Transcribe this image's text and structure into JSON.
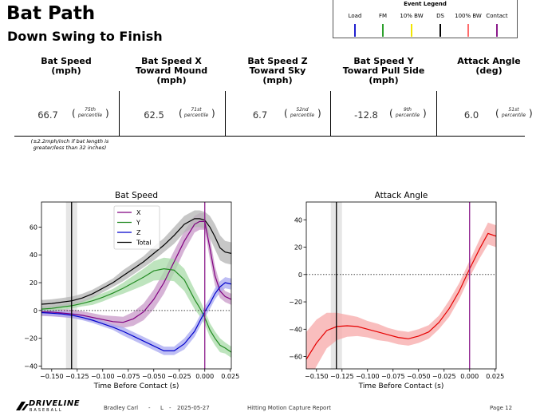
{
  "header": {
    "title": "Bat Path",
    "subtitle": "Down Swing to Finish"
  },
  "event_legend": {
    "title": "Event Legend",
    "items": [
      {
        "label": "Load",
        "color": "#1f1fcf"
      },
      {
        "label": "FM",
        "color": "#2ca02c"
      },
      {
        "label": "10% BW",
        "color": "#f2e600"
      },
      {
        "label": "DS",
        "color": "#000000"
      },
      {
        "label": "100% BW",
        "color": "#ff6b6b"
      },
      {
        "label": "Contact",
        "color": "#8b1a8b"
      }
    ]
  },
  "metrics": [
    {
      "line1": "Bat Speed",
      "line2": "(mph)",
      "line3": "",
      "value": "66.7",
      "pct1": "75th",
      "pct2": "percentile"
    },
    {
      "line1": "Bat Speed X",
      "line2": "Toward Mound",
      "line3": "(mph)",
      "value": "62.5",
      "pct1": "71st",
      "pct2": "percentile"
    },
    {
      "line1": "Bat Speed Z",
      "line2": "Toward Sky",
      "line3": "(mph)",
      "value": "6.7",
      "pct1": "52nd",
      "pct2": "percentile"
    },
    {
      "line1": "Bat Speed Y",
      "line2": "Toward Pull Side",
      "line3": "(mph)",
      "value": "-12.8",
      "pct1": "9th",
      "pct2": "percentile"
    },
    {
      "line1": "Attack Angle",
      "line2": "(deg)",
      "line3": "",
      "value": "6.0",
      "pct1": "51st",
      "pct2": "percentile"
    }
  ],
  "note": "(±2.2mph/inch if bat length is greater/less than 32 inches)",
  "chart_data": [
    {
      "type": "line",
      "title": "Bat Speed",
      "xlabel": "Time Before Contact (s)",
      "ylabel": "",
      "xlim": [
        -0.16,
        0.026
      ],
      "ylim": [
        -42,
        78
      ],
      "xticks": [
        -0.15,
        -0.125,
        -0.1,
        -0.075,
        -0.05,
        -0.025,
        0.0,
        0.025
      ],
      "xtick_labels": [
        "−0.150",
        "−0.125",
        "−0.100",
        "−0.075",
        "−0.050",
        "−0.025",
        "0.000",
        "0.025"
      ],
      "yticks": [
        -40,
        -20,
        0,
        20,
        40,
        60
      ],
      "ytick_labels": [
        "−40",
        "−20",
        "0",
        "20",
        "40",
        "60"
      ],
      "ds_time": -0.1305,
      "ds_band": [
        -0.136,
        -0.125
      ],
      "contact_time": 0.0,
      "zero_line": 0,
      "legend": [
        "X",
        "Y",
        "Z",
        "Total"
      ],
      "legend_position": "upper center",
      "x": [
        -0.16,
        -0.15,
        -0.14,
        -0.13,
        -0.12,
        -0.11,
        -0.1,
        -0.09,
        -0.08,
        -0.07,
        -0.06,
        -0.05,
        -0.04,
        -0.03,
        -0.02,
        -0.01,
        -0.005,
        0.0,
        0.005,
        0.01,
        0.015,
        0.02,
        0.026
      ],
      "series": [
        {
          "name": "X",
          "color": "#800080",
          "band_color": "#c89ac8",
          "values": [
            -1,
            -1.2,
            -1.8,
            -2.5,
            -3.5,
            -5,
            -6.5,
            -8,
            -8.5,
            -6,
            -1,
            8,
            20,
            35,
            50,
            62,
            64,
            64,
            45,
            25,
            14,
            10,
            8
          ],
          "band": [
            3,
            3,
            3,
            3,
            3,
            3,
            3,
            4,
            4,
            5,
            6,
            7,
            8,
            8,
            7,
            6,
            6,
            6,
            8,
            7,
            5,
            4,
            4
          ]
        },
        {
          "name": "Y",
          "color": "#228B22",
          "band_color": "#a8dba8",
          "values": [
            1,
            1.5,
            2.5,
            3.5,
            5,
            7,
            9.5,
            12.5,
            16,
            20,
            24,
            28.5,
            30,
            29,
            22,
            8,
            2,
            -5,
            -14,
            -20,
            -25,
            -27,
            -30
          ],
          "band": [
            2,
            2,
            2,
            2,
            2,
            3,
            3,
            3,
            4,
            5,
            6,
            7,
            8,
            8,
            8,
            7,
            6,
            5,
            5,
            5,
            5,
            4,
            4
          ]
        },
        {
          "name": "Z",
          "color": "#0000cc",
          "band_color": "#a8a8f0",
          "values": [
            -1.5,
            -2,
            -2.5,
            -3.5,
            -5,
            -7,
            -9.5,
            -12,
            -15,
            -18.5,
            -22,
            -25.5,
            -29,
            -29,
            -24,
            -15,
            -8,
            -1,
            5,
            12,
            17,
            20,
            19
          ],
          "band": [
            2,
            2,
            2,
            2,
            2,
            2,
            2,
            2,
            3,
            3,
            3,
            3,
            3,
            3,
            4,
            4,
            4,
            4,
            4,
            4,
            4,
            4,
            4
          ]
        },
        {
          "name": "Total",
          "color": "#000000",
          "band_color": "#b4b4b4",
          "values": [
            4.5,
            5,
            6,
            7,
            9,
            12,
            16,
            20,
            25,
            30,
            35,
            41,
            47,
            54,
            62,
            66,
            66,
            65,
            60,
            53,
            45,
            42,
            41
          ],
          "band": [
            3,
            3,
            3,
            3,
            3,
            3,
            3,
            3,
            4,
            4,
            4,
            5,
            5,
            6,
            6,
            6,
            6,
            6,
            8,
            9,
            9,
            8,
            8
          ]
        }
      ]
    },
    {
      "type": "line",
      "title": "Attack Angle",
      "xlabel": "Time Before Contact (s)",
      "ylabel": "",
      "xlim": [
        -0.16,
        0.026
      ],
      "ylim": [
        -69,
        53
      ],
      "xticks": [
        -0.15,
        -0.125,
        -0.1,
        -0.075,
        -0.05,
        -0.025,
        0.0,
        0.025
      ],
      "xtick_labels": [
        "−0.150",
        "−0.125",
        "−0.100",
        "−0.075",
        "−0.050",
        "−0.025",
        "0.000",
        "0.025"
      ],
      "yticks": [
        -60,
        -40,
        -20,
        0,
        20,
        40
      ],
      "ytick_labels": [
        "−60",
        "−40",
        "−20",
        "0",
        "20",
        "40"
      ],
      "ds_time": -0.1305,
      "ds_band": [
        -0.136,
        -0.125
      ],
      "contact_time": 0.0,
      "zero_line": 0,
      "x": [
        -0.16,
        -0.15,
        -0.14,
        -0.13,
        -0.12,
        -0.11,
        -0.1,
        -0.09,
        -0.08,
        -0.07,
        -0.06,
        -0.055,
        -0.05,
        -0.04,
        -0.03,
        -0.02,
        -0.01,
        0.0,
        0.01,
        0.018,
        0.026
      ],
      "series": [
        {
          "name": "Attack Angle",
          "color": "#e60000",
          "band_color": "#f7a8a8",
          "values": [
            -62,
            -50,
            -41,
            -38,
            -37.5,
            -38,
            -40,
            -42,
            -44,
            -46,
            -47,
            -46,
            -45,
            -42,
            -35,
            -25,
            -12,
            4,
            19,
            30,
            28
          ],
          "band": [
            20,
            17,
            13,
            10,
            8,
            7,
            6,
            6,
            5,
            5,
            5,
            5,
            5,
            5,
            5,
            6,
            6,
            6,
            7,
            8,
            8
          ]
        }
      ]
    }
  ],
  "footer": {
    "brand": "DRIVELINE",
    "brand_sub": "BASEBALL",
    "athlete": "Bradley Carl",
    "side": "L",
    "sep": "-",
    "date": "2025-05-27",
    "report": "Hitting Motion Capture Report",
    "page": "Page 12"
  }
}
